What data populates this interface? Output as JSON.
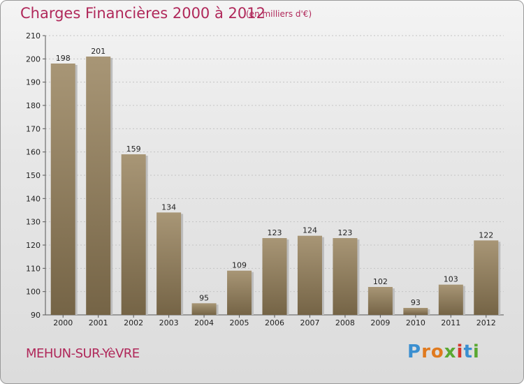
{
  "title": "Charges Financières 2000 à 2012",
  "subtitle": "(en milliers d'€)",
  "location": "MEHUN-SUR-YèVRE",
  "logo": {
    "letters": [
      "P",
      "r",
      "o",
      "x",
      "i",
      "t",
      "i"
    ],
    "colors": [
      "#3b8fd0",
      "#e07a1f",
      "#e07a1f",
      "#5aa832",
      "#d4382c",
      "#3b8fd0",
      "#5aa832"
    ]
  },
  "colors": {
    "bar_top": "#a89676",
    "bar_bottom": "#756446",
    "bar_shadow": "#bdbdbd",
    "text_accent": "#b0285a"
  },
  "chart_data": {
    "type": "bar",
    "categories": [
      "2000",
      "2001",
      "2002",
      "2003",
      "2004",
      "2005",
      "2006",
      "2007",
      "2008",
      "2009",
      "2010",
      "2011",
      "2012"
    ],
    "values": [
      198,
      201,
      159,
      134,
      95,
      109,
      123,
      124,
      123,
      102,
      93,
      103,
      122
    ],
    "value_labels": [
      "198",
      "201",
      "159",
      "134",
      "95",
      "109",
      "123",
      "124",
      "123",
      "102",
      "93",
      "103",
      "122"
    ],
    "ylim": [
      90,
      210
    ],
    "yticks": [
      90,
      100,
      110,
      120,
      130,
      140,
      150,
      160,
      170,
      180,
      190,
      200,
      210
    ],
    "ytick_labels": [
      "90",
      "100",
      "110",
      "120",
      "130",
      "140",
      "150",
      "160",
      "170",
      "180",
      "190",
      "200",
      "210"
    ],
    "title": "Charges Financières 2000 à 2012",
    "xlabel": "",
    "ylabel": "",
    "grid": true
  }
}
